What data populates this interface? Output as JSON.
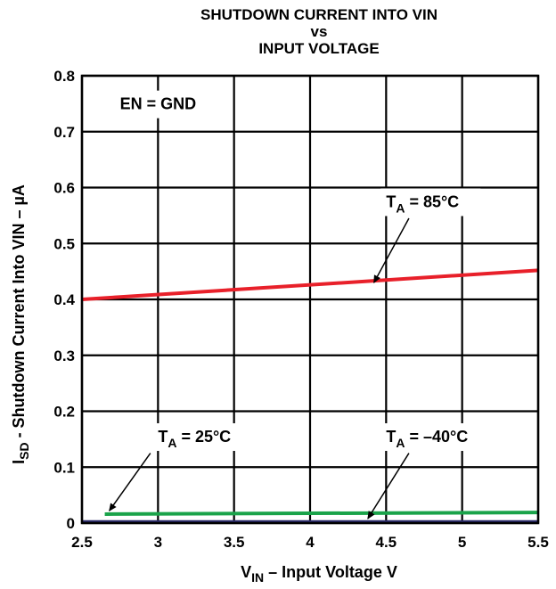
{
  "chart_data": {
    "type": "line",
    "title_lines": [
      "SHUTDOWN CURRENT INTO VIN",
      "vs",
      "INPUT VOLTAGE"
    ],
    "xlabel": {
      "main": "V",
      "sub": "IN",
      "rest": " – Input Voltage V"
    },
    "ylabel": {
      "main": "I",
      "sub": "SD",
      "rest": " - Shutdown Current Into VIN – µA"
    },
    "xlim": [
      2.5,
      5.5
    ],
    "ylim": [
      0,
      0.8
    ],
    "x_ticks": [
      2.5,
      3,
      3.5,
      4,
      4.5,
      5,
      5.5
    ],
    "x_tick_labels": [
      "2.5",
      "3",
      "3.5",
      "4",
      "4.5",
      "5",
      "5.5"
    ],
    "y_ticks": [
      0,
      0.1,
      0.2,
      0.3,
      0.4,
      0.5,
      0.6,
      0.7,
      0.8
    ],
    "y_tick_labels": [
      "0",
      "0.1",
      "0.2",
      "0.3",
      "0.4",
      "0.5",
      "0.6",
      "0.7",
      "0.8"
    ],
    "grid": true,
    "series": [
      {
        "name": "TA = 85°C",
        "color": "#e8202a",
        "x": [
          2.5,
          5.5
        ],
        "y": [
          0.4,
          0.452
        ]
      },
      {
        "name": "TA = 25°C",
        "color": "#1aa34a",
        "x": [
          2.65,
          5.5
        ],
        "y": [
          0.016,
          0.019
        ]
      },
      {
        "name": "TA = -40°C",
        "color": "#2b2a6b",
        "x": [
          2.5,
          5.5
        ],
        "y": [
          0.002,
          0.002
        ]
      }
    ],
    "annotations": [
      {
        "id": "en",
        "text": "EN = GND",
        "x": 2.75,
        "y": 0.74
      },
      {
        "id": "t85",
        "main": "T",
        "sub": "A",
        "rest": " = 85°C",
        "x": 4.5,
        "y": 0.565,
        "arrow_from": [
          4.65,
          0.545
        ],
        "arrow_to": [
          4.42,
          0.43
        ]
      },
      {
        "id": "t25",
        "main": "T",
        "sub": "A",
        "rest": " = 25°C",
        "x": 3.0,
        "y": 0.145,
        "arrow_from": [
          2.95,
          0.125
        ],
        "arrow_to": [
          2.68,
          0.022
        ]
      },
      {
        "id": "tm40",
        "main": "T",
        "sub": "A",
        "rest": " = –40°C",
        "x": 4.5,
        "y": 0.145,
        "arrow_from": [
          4.65,
          0.125
        ],
        "arrow_to": [
          4.38,
          0.008
        ]
      }
    ]
  }
}
